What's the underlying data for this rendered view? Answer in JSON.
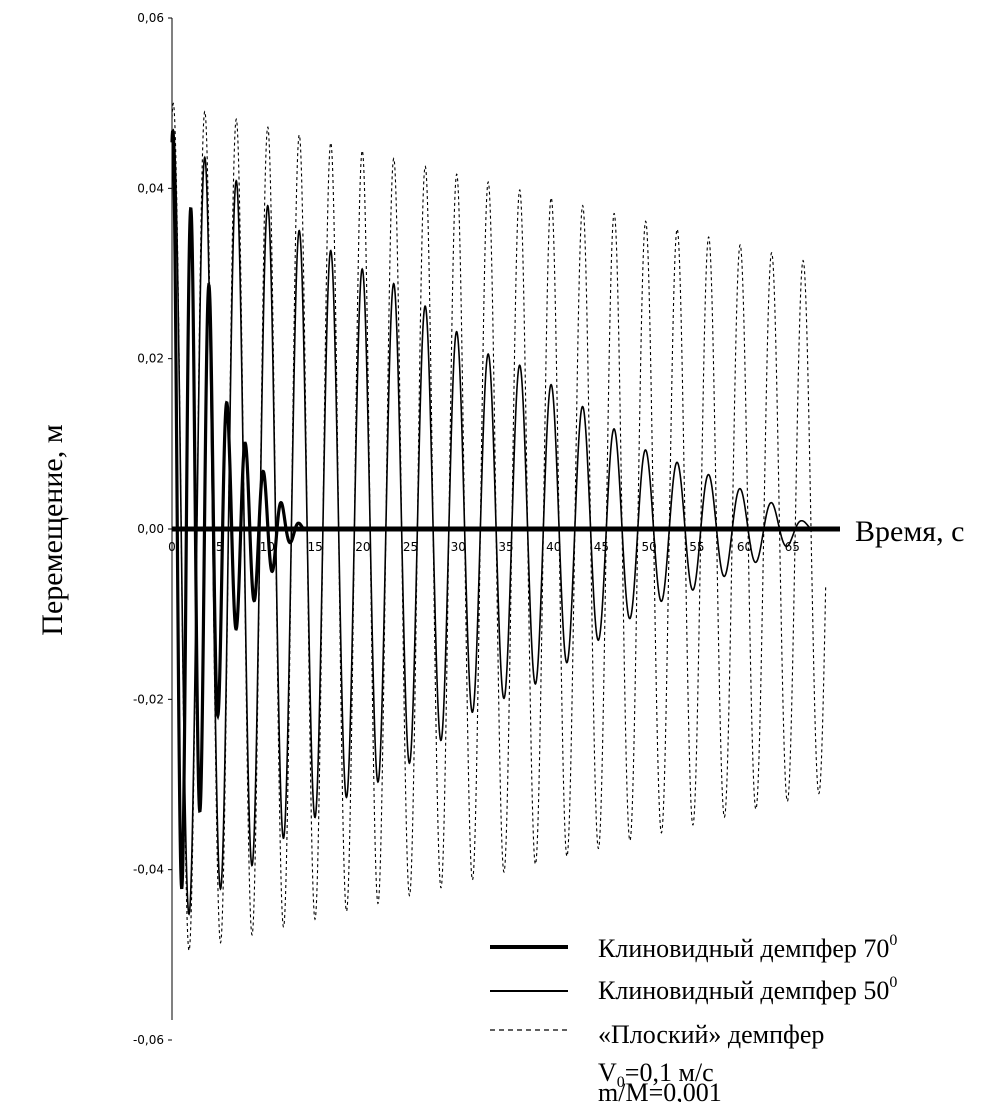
{
  "chart_data": {
    "type": "line",
    "xlabel": "Время, с",
    "ylabel": "Перемещение, м",
    "xlim": [
      0,
      70
    ],
    "ylim": [
      -0.06,
      0.06
    ],
    "xticks": [
      "0",
      "5",
      "10",
      "15",
      "20",
      "25",
      "30",
      "35",
      "40",
      "45",
      "50",
      "55",
      "60",
      "65"
    ],
    "yticks": [
      "0,06",
      "0,04",
      "0,02",
      "0,00",
      "-0,02",
      "-0,04",
      "-0,06"
    ],
    "ytick_values": [
      0.06,
      0.04,
      0.02,
      0.0,
      -0.02,
      -0.04,
      -0.06
    ],
    "grid": false,
    "legend_position": "bottom-right",
    "series": [
      {
        "name": "Клиновидный демпфер 70",
        "name_superscript": "0",
        "style": "thick-solid",
        "period": 1.9,
        "peaks": [
          [
            0,
            0.047
          ],
          [
            4,
            0.028
          ],
          [
            6,
            0.013
          ],
          [
            10,
            0.006
          ],
          [
            12,
            0.002
          ],
          [
            14,
            0.0
          ],
          [
            70,
            0.0
          ]
        ]
      },
      {
        "name": "Клиновидный демпфер 50",
        "name_superscript": "0",
        "style": "thin-solid",
        "period": 3.3,
        "peaks": [
          [
            0,
            0.047
          ],
          [
            3,
            0.044
          ],
          [
            9,
            0.039
          ],
          [
            12,
            0.036
          ],
          [
            19,
            0.031
          ],
          [
            23,
            0.029
          ],
          [
            28,
            0.025
          ],
          [
            32,
            0.021
          ],
          [
            37,
            0.019
          ],
          [
            41,
            0.016
          ],
          [
            46,
            0.012
          ],
          [
            50,
            0.009
          ],
          [
            55,
            0.007
          ],
          [
            59,
            0.005
          ],
          [
            63,
            0.003
          ],
          [
            66,
            0.001
          ],
          [
            68,
            0.0
          ]
        ]
      },
      {
        "name": "«Плоский» демпфер",
        "style": "dashed",
        "period": 3.3,
        "peaks": [
          [
            0,
            0.05
          ],
          [
            68,
            0.031
          ]
        ]
      }
    ],
    "annotations": [
      {
        "name": "V",
        "subscript": "0",
        "text": "=0,1 м/с"
      },
      {
        "text": "m/M=0,001"
      }
    ]
  }
}
